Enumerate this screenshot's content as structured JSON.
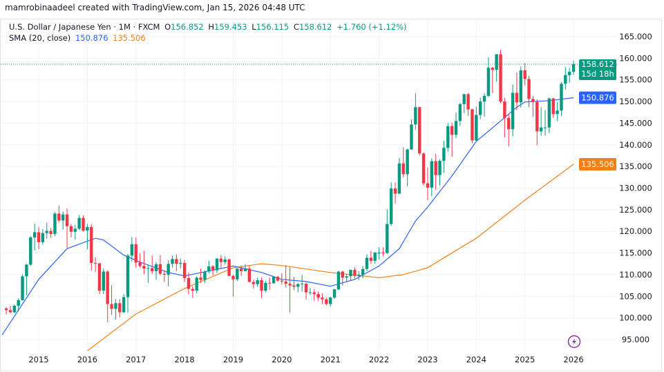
{
  "credit": "mamrobinaadeel created with TradingView.com, Jan 15, 2026 04:48 UTC",
  "legend": {
    "symbol": "U.S. Dollar / Japanese Yen · 1M · FXCM",
    "o_label": "O",
    "o": "156.852",
    "h_label": "H",
    "h": "159.453",
    "l_label": "L",
    "l": "156.115",
    "c_label": "C",
    "c": "158.612",
    "change": "+1.760 (+1.12%)",
    "sma_label": "SMA (20, close)",
    "sma1": "150.876",
    "sma2": "135.506"
  },
  "price_tags": {
    "last": "158.612",
    "countdown": "15d 18h",
    "sma1": "150.876",
    "sma2": "135.506"
  },
  "colors": {
    "up": "#089981",
    "down": "#f23645",
    "sma1": "#2962ff",
    "sma2": "#f57f17",
    "grid": "#f0f3fa"
  },
  "icons": {
    "bottom": "lightning-bolt-icon"
  },
  "chart_data": {
    "type": "candlestick",
    "interval": "1M",
    "start": "2014-05",
    "ylim": [
      95,
      165
    ],
    "y_ticks": [
      "95.000",
      "100.000",
      "105.000",
      "110.000",
      "115.000",
      "120.000",
      "125.000",
      "130.000",
      "135.000",
      "140.000",
      "145.000",
      "150.000",
      "155.000",
      "160.000",
      "165.000"
    ],
    "x_ticks": [
      "2015",
      "2016",
      "2017",
      "2018",
      "2019",
      "2020",
      "2021",
      "2022",
      "2023",
      "2024",
      "2025",
      "2026"
    ],
    "grid": true,
    "ohlc": [
      [
        102.2,
        102.5,
        100.8,
        101.8
      ],
      [
        101.8,
        102.8,
        101.1,
        101.3
      ],
      [
        101.3,
        103.1,
        101.1,
        102.8
      ],
      [
        102.8,
        104.5,
        101.5,
        104.1
      ],
      [
        104.1,
        110.1,
        104.0,
        109.6
      ],
      [
        109.6,
        112.5,
        105.2,
        112.3
      ],
      [
        112.3,
        118.9,
        112.0,
        118.6
      ],
      [
        118.6,
        121.8,
        115.6,
        119.8
      ],
      [
        119.8,
        121.0,
        115.9,
        117.5
      ],
      [
        117.5,
        120.5,
        116.9,
        119.6
      ],
      [
        119.6,
        122.0,
        118.3,
        120.1
      ],
      [
        120.1,
        120.8,
        118.5,
        119.4
      ],
      [
        119.4,
        124.5,
        118.9,
        124.1
      ],
      [
        124.1,
        125.9,
        122.0,
        122.5
      ],
      [
        122.5,
        124.6,
        120.4,
        123.9
      ],
      [
        123.9,
        125.3,
        116.2,
        121.2
      ],
      [
        121.2,
        121.7,
        118.6,
        119.9
      ],
      [
        119.9,
        121.5,
        118.1,
        120.6
      ],
      [
        120.6,
        123.8,
        120.3,
        123.1
      ],
      [
        123.1,
        123.7,
        119.9,
        120.2
      ],
      [
        120.2,
        121.7,
        115.9,
        121.0
      ],
      [
        121.0,
        121.7,
        110.9,
        112.7
      ],
      [
        112.7,
        114.0,
        110.6,
        112.6
      ],
      [
        112.6,
        112.7,
        105.5,
        106.3
      ],
      [
        106.3,
        111.4,
        105.5,
        110.7
      ],
      [
        110.7,
        111.0,
        99.0,
        103.2
      ],
      [
        103.2,
        107.5,
        100.7,
        102.1
      ],
      [
        102.1,
        104.3,
        99.6,
        103.4
      ],
      [
        103.4,
        104.3,
        100.1,
        101.3
      ],
      [
        101.3,
        105.5,
        101.2,
        104.8
      ],
      [
        104.8,
        114.8,
        101.2,
        114.4
      ],
      [
        114.4,
        118.7,
        113.1,
        117.0
      ],
      [
        117.0,
        118.6,
        111.6,
        112.8
      ],
      [
        112.8,
        114.9,
        111.6,
        112.0
      ],
      [
        112.0,
        115.5,
        110.1,
        111.4
      ],
      [
        111.4,
        112.2,
        108.1,
        111.5
      ],
      [
        111.5,
        114.4,
        110.2,
        110.8
      ],
      [
        110.8,
        112.9,
        108.8,
        112.4
      ],
      [
        112.4,
        114.5,
        109.9,
        110.2
      ],
      [
        110.2,
        111.0,
        108.3,
        110.0
      ],
      [
        110.0,
        113.3,
        107.3,
        112.5
      ],
      [
        112.5,
        114.4,
        111.6,
        113.6
      ],
      [
        113.6,
        114.7,
        110.8,
        112.5
      ],
      [
        112.5,
        113.7,
        111.4,
        112.7
      ],
      [
        112.7,
        113.4,
        108.3,
        109.2
      ],
      [
        109.2,
        110.5,
        105.5,
        106.7
      ],
      [
        106.7,
        107.3,
        104.6,
        106.3
      ],
      [
        106.3,
        109.6,
        105.7,
        109.3
      ],
      [
        109.3,
        111.4,
        108.1,
        108.8
      ],
      [
        108.8,
        111.0,
        108.1,
        110.7
      ],
      [
        110.7,
        113.2,
        110.3,
        111.9
      ],
      [
        111.9,
        112.2,
        109.8,
        111.0
      ],
      [
        111.0,
        113.8,
        110.4,
        113.7
      ],
      [
        113.7,
        114.5,
        111.4,
        112.9
      ],
      [
        112.9,
        114.2,
        112.3,
        113.5
      ],
      [
        113.5,
        113.7,
        109.6,
        109.7
      ],
      [
        109.7,
        110.0,
        104.9,
        108.9
      ],
      [
        108.9,
        111.5,
        108.5,
        111.4
      ],
      [
        111.4,
        112.1,
        109.7,
        110.8
      ],
      [
        110.8,
        112.4,
        110.8,
        111.4
      ],
      [
        111.4,
        112.0,
        108.3,
        108.3
      ],
      [
        108.3,
        108.8,
        106.8,
        107.8
      ],
      [
        107.8,
        109.3,
        107.2,
        108.7
      ],
      [
        108.7,
        109.3,
        104.5,
        106.3
      ],
      [
        106.3,
        108.5,
        105.9,
        108.1
      ],
      [
        108.1,
        109.3,
        106.5,
        108.0
      ],
      [
        108.0,
        109.7,
        107.9,
        109.5
      ],
      [
        109.5,
        109.7,
        108.4,
        108.6
      ],
      [
        108.6,
        110.3,
        107.7,
        108.4
      ],
      [
        108.4,
        112.2,
        107.0,
        107.9
      ],
      [
        107.9,
        111.7,
        101.2,
        107.5
      ],
      [
        107.5,
        109.4,
        106.4,
        107.2
      ],
      [
        107.2,
        108.1,
        105.9,
        107.8
      ],
      [
        107.8,
        109.9,
        106.1,
        107.9
      ],
      [
        107.9,
        108.2,
        104.2,
        105.9
      ],
      [
        105.9,
        107.0,
        105.3,
        105.9
      ],
      [
        105.9,
        106.6,
        104.0,
        105.5
      ],
      [
        105.5,
        106.1,
        104.0,
        104.7
      ],
      [
        104.7,
        105.7,
        103.2,
        104.3
      ],
      [
        104.3,
        104.7,
        102.9,
        103.2
      ],
      [
        103.2,
        104.9,
        102.6,
        104.7
      ],
      [
        104.7,
        106.7,
        104.4,
        106.6
      ],
      [
        106.6,
        110.9,
        106.4,
        110.7
      ],
      [
        110.7,
        110.9,
        107.5,
        109.3
      ],
      [
        109.3,
        110.2,
        108.3,
        109.6
      ],
      [
        109.6,
        111.1,
        108.6,
        111.1
      ],
      [
        111.1,
        111.7,
        109.1,
        109.7
      ],
      [
        109.7,
        110.8,
        108.7,
        110.0
      ],
      [
        110.0,
        112.0,
        109.1,
        111.3
      ],
      [
        111.3,
        114.7,
        110.8,
        113.9
      ],
      [
        113.9,
        115.5,
        112.5,
        113.2
      ],
      [
        113.2,
        115.2,
        112.5,
        115.1
      ],
      [
        115.1,
        116.3,
        113.5,
        115.1
      ],
      [
        115.1,
        116.3,
        114.2,
        115.0
      ],
      [
        115.0,
        125.1,
        114.7,
        121.7
      ],
      [
        121.7,
        131.3,
        121.3,
        129.9
      ],
      [
        129.9,
        131.3,
        126.4,
        128.7
      ],
      [
        128.7,
        137.0,
        128.7,
        135.7
      ],
      [
        135.7,
        139.4,
        132.5,
        133.2
      ],
      [
        133.2,
        139.1,
        130.4,
        138.9
      ],
      [
        138.9,
        145.9,
        138.9,
        144.7
      ],
      [
        144.7,
        151.9,
        143.5,
        148.7
      ],
      [
        148.7,
        148.8,
        137.5,
        138.0
      ],
      [
        138.0,
        138.2,
        130.6,
        131.1
      ],
      [
        131.1,
        134.8,
        127.2,
        130.1
      ],
      [
        130.1,
        136.9,
        128.1,
        136.2
      ],
      [
        136.2,
        137.9,
        129.6,
        133.0
      ],
      [
        133.0,
        136.6,
        130.6,
        136.3
      ],
      [
        136.3,
        140.9,
        133.5,
        139.3
      ],
      [
        139.3,
        145.0,
        138.4,
        144.3
      ],
      [
        144.3,
        145.1,
        137.2,
        142.3
      ],
      [
        142.3,
        147.4,
        141.5,
        145.5
      ],
      [
        145.5,
        149.7,
        144.4,
        149.4
      ],
      [
        149.4,
        151.7,
        147.3,
        151.7
      ],
      [
        151.7,
        151.9,
        146.7,
        148.2
      ],
      [
        148.2,
        148.3,
        140.3,
        141.0
      ],
      [
        141.0,
        148.8,
        140.8,
        146.9
      ],
      [
        146.9,
        150.9,
        145.9,
        150.0
      ],
      [
        150.0,
        151.9,
        146.5,
        151.3
      ],
      [
        151.3,
        160.2,
        151.0,
        157.8
      ],
      [
        157.8,
        157.99,
        151.9,
        157.3
      ],
      [
        157.3,
        161.0,
        154.6,
        160.9
      ],
      [
        160.9,
        161.95,
        149.6,
        150.0
      ],
      [
        150.0,
        150.9,
        141.7,
        146.2
      ],
      [
        146.2,
        147.2,
        139.6,
        143.6
      ],
      [
        143.6,
        153.9,
        142.0,
        152.0
      ],
      [
        152.0,
        156.7,
        148.0,
        149.8
      ],
      [
        149.8,
        158.1,
        148.6,
        157.2
      ],
      [
        157.2,
        158.9,
        153.7,
        155.2
      ],
      [
        155.2,
        155.9,
        148.7,
        150.6
      ],
      [
        150.6,
        151.3,
        146.5,
        149.9
      ],
      [
        149.9,
        150.5,
        139.9,
        143.1
      ],
      [
        143.1,
        148.7,
        142.1,
        144.0
      ],
      [
        144.0,
        148.0,
        142.1,
        144.0
      ],
      [
        144.0,
        150.9,
        142.7,
        150.7
      ],
      [
        150.7,
        150.9,
        146.2,
        147.1
      ],
      [
        147.1,
        149.9,
        145.5,
        147.9
      ],
      [
        147.9,
        154.5,
        146.6,
        154.1
      ],
      [
        154.1,
        157.9,
        152.8,
        156.1
      ],
      [
        156.1,
        157.8,
        154.3,
        156.85
      ],
      [
        156.852,
        159.453,
        156.115,
        158.612
      ]
    ],
    "sma_20": [
      [
        "2014-04",
        96.1
      ],
      [
        "2015-01",
        108.9
      ],
      [
        "2015-08",
        116.0
      ],
      [
        "2016-03",
        118.4
      ],
      [
        "2016-05",
        118.0
      ],
      [
        "2016-10",
        114.5
      ],
      [
        "2017-02",
        112.9
      ],
      [
        "2017-09",
        110.5
      ],
      [
        "2018-01",
        109.7
      ],
      [
        "2019-01",
        112.0
      ],
      [
        "2019-08",
        110.5
      ],
      [
        "2020-01",
        108.9
      ],
      [
        "2020-07",
        108.4
      ],
      [
        "2021-01",
        107.3
      ],
      [
        "2021-07",
        108.9
      ],
      [
        "2022-01",
        112.0
      ],
      [
        "2022-06",
        116.0
      ],
      [
        "2022-10",
        122.4
      ],
      [
        "2023-01",
        125.6
      ],
      [
        "2023-07",
        132.8
      ],
      [
        "2024-01",
        140.8
      ],
      [
        "2024-07",
        145.5
      ],
      [
        "2024-11",
        148.7
      ],
      [
        "2025-01",
        149.9
      ],
      [
        "2025-07",
        150.2
      ],
      [
        "2026-01",
        150.876
      ]
    ],
    "sma_long": [
      [
        "2016-01",
        92.4
      ],
      [
        "2017-01",
        100.9
      ],
      [
        "2018-01",
        106.8
      ],
      [
        "2019-01",
        111.6
      ],
      [
        "2019-08",
        112.5
      ],
      [
        "2020-01",
        112.1
      ],
      [
        "2021-01",
        110.5
      ],
      [
        "2022-01",
        109.3
      ],
      [
        "2022-07",
        110.0
      ],
      [
        "2023-01",
        111.6
      ],
      [
        "2024-01",
        118.4
      ],
      [
        "2025-01",
        127.2
      ],
      [
        "2026-01",
        135.506
      ]
    ]
  }
}
